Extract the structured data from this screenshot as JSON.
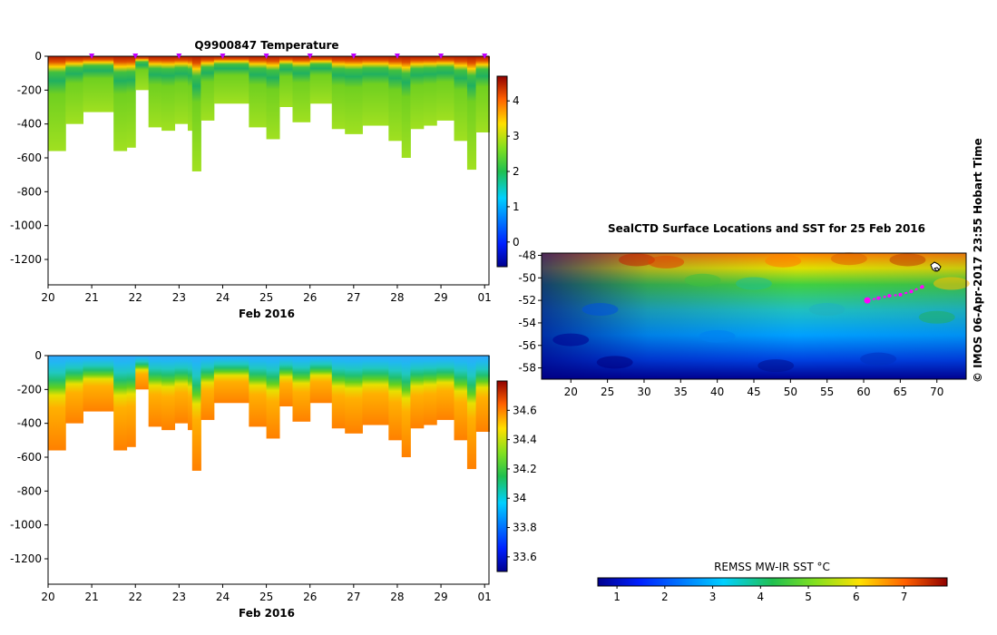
{
  "chart_data": [
    {
      "type": "heatmap",
      "title": "Q9900847  Temperature",
      "xlabel": "Feb 2016",
      "ylabel": "",
      "x_ticks": [
        "20",
        "21",
        "22",
        "23",
        "24",
        "25",
        "26",
        "27",
        "28",
        "29",
        "01"
      ],
      "y_ticks": [
        "0",
        "-200",
        "-400",
        "-600",
        "-800",
        "-1000",
        "-1200"
      ],
      "xlim": [
        20,
        30.1
      ],
      "ylim": [
        -1350,
        0
      ],
      "colorbar": {
        "ticks": [
          "0",
          "1",
          "2",
          "3",
          "4"
        ],
        "range": [
          -0.7,
          4.7
        ]
      },
      "profile_markers": [
        21,
        22,
        23,
        24,
        25,
        26,
        27,
        28,
        29,
        30
      ],
      "profile_depths": [
        {
          "t": 20.0,
          "d": -560
        },
        {
          "t": 20.4,
          "d": -400
        },
        {
          "t": 20.8,
          "d": -330
        },
        {
          "t": 21.2,
          "d": -330
        },
        {
          "t": 21.5,
          "d": -560
        },
        {
          "t": 21.8,
          "d": -540
        },
        {
          "t": 22.0,
          "d": -200
        },
        {
          "t": 22.3,
          "d": -420
        },
        {
          "t": 22.6,
          "d": -440
        },
        {
          "t": 22.9,
          "d": -400
        },
        {
          "t": 23.2,
          "d": -440
        },
        {
          "t": 23.3,
          "d": -680
        },
        {
          "t": 23.5,
          "d": -380
        },
        {
          "t": 23.8,
          "d": -280
        },
        {
          "t": 24.6,
          "d": -420
        },
        {
          "t": 25.0,
          "d": -490
        },
        {
          "t": 25.3,
          "d": -300
        },
        {
          "t": 25.6,
          "d": -390
        },
        {
          "t": 26.0,
          "d": -280
        },
        {
          "t": 26.5,
          "d": -430
        },
        {
          "t": 26.8,
          "d": -460
        },
        {
          "t": 27.2,
          "d": -410
        },
        {
          "t": 27.8,
          "d": -500
        },
        {
          "t": 28.1,
          "d": -600
        },
        {
          "t": 28.3,
          "d": -430
        },
        {
          "t": 28.6,
          "d": -410
        },
        {
          "t": 28.9,
          "d": -380
        },
        {
          "t": 29.3,
          "d": -500
        },
        {
          "t": 29.6,
          "d": -670
        },
        {
          "t": 29.8,
          "d": -450
        },
        {
          "t": 30.1,
          "d": -450
        }
      ]
    },
    {
      "type": "heatmap",
      "title": "",
      "xlabel": "Feb 2016",
      "ylabel": "",
      "x_ticks": [
        "20",
        "21",
        "22",
        "23",
        "24",
        "25",
        "26",
        "27",
        "28",
        "29",
        "01"
      ],
      "y_ticks": [
        "0",
        "-200",
        "-400",
        "-600",
        "-800",
        "-1000",
        "-1200"
      ],
      "xlim": [
        20,
        30.1
      ],
      "ylim": [
        -1350,
        0
      ],
      "colorbar": {
        "ticks": [
          "33.6",
          "33.8",
          "34",
          "34.2",
          "34.4",
          "34.6"
        ],
        "range": [
          33.5,
          34.8
        ]
      }
    },
    {
      "type": "heatmap",
      "title": "SealCTD Surface Locations and SST for 25 Feb 2016",
      "xlabel": "",
      "ylabel": "",
      "x_ticks": [
        "20",
        "25",
        "30",
        "35",
        "40",
        "45",
        "50",
        "55",
        "60",
        "65",
        "70"
      ],
      "y_ticks": [
        "-48",
        "-50",
        "-52",
        "-54",
        "-56",
        "-58"
      ],
      "xlim": [
        16,
        74
      ],
      "ylim": [
        -59,
        -47.8
      ],
      "track_points": [
        [
          60.5,
          -52.0
        ],
        [
          62.0,
          -51.8
        ],
        [
          63.5,
          -51.6
        ],
        [
          65.0,
          -51.5
        ],
        [
          66.5,
          -51.2
        ],
        [
          68.0,
          -50.8
        ]
      ],
      "colorbar": {
        "label": "REMSS MW-IR SST °C",
        "ticks": [
          "1",
          "2",
          "3",
          "4",
          "5",
          "6",
          "7"
        ],
        "range": [
          0.6,
          7.9
        ]
      }
    }
  ],
  "credit": "© IMOS 06-Apr-2017 23:55 Hobart Time"
}
